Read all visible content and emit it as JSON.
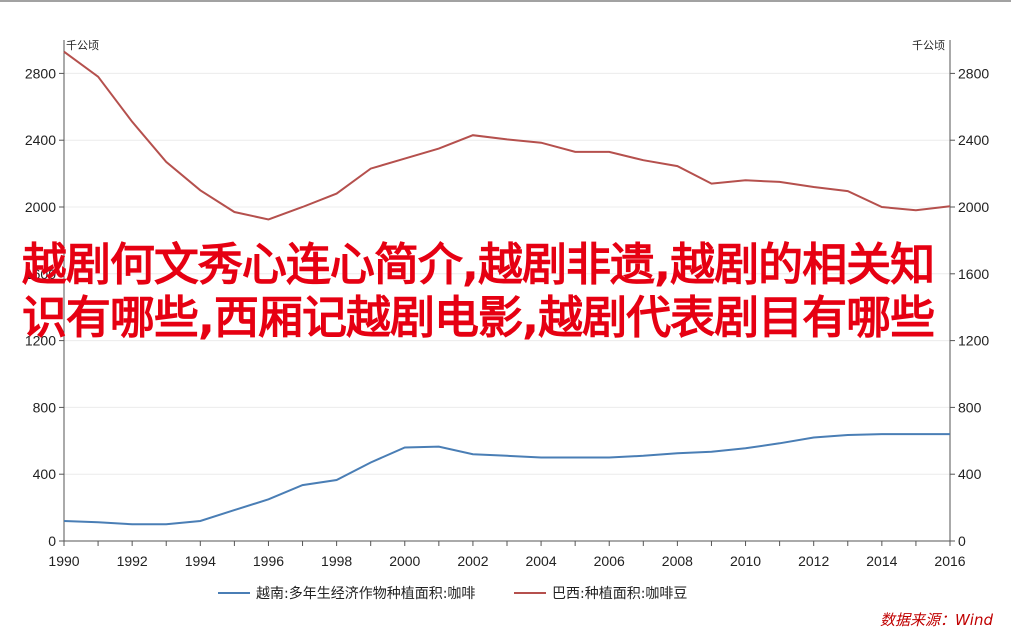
{
  "chart_data": {
    "type": "line",
    "left_unit": "千公顷",
    "right_unit": "千公顷",
    "x": [
      1990,
      1991,
      1992,
      1993,
      1994,
      1995,
      1996,
      1997,
      1998,
      1999,
      2000,
      2001,
      2002,
      2003,
      2004,
      2005,
      2006,
      2007,
      2008,
      2009,
      2010,
      2011,
      2012,
      2013,
      2014,
      2015,
      2016
    ],
    "xticks": [
      "1990",
      "1992",
      "1994",
      "1996",
      "1998",
      "2000",
      "2002",
      "2004",
      "2006",
      "2008",
      "2010",
      "2012",
      "2014",
      "2016"
    ],
    "yticks": [
      "0",
      "400",
      "800",
      "1200",
      "1600",
      "2000",
      "2400",
      "2800"
    ],
    "ylim": [
      0,
      3000
    ],
    "xlim": [
      1990,
      2016
    ],
    "grid": true,
    "legend_position": "bottom",
    "series": [
      {
        "name": "越南:多年生经济作物种植面积:咖啡",
        "color": "#4a7eb5",
        "values": [
          120,
          112,
          100,
          100,
          120,
          185,
          250,
          335,
          365,
          470,
          560,
          565,
          520,
          510,
          500,
          500,
          500,
          510,
          525,
          535,
          555,
          585,
          620,
          635,
          640,
          640,
          640
        ]
      },
      {
        "name": "巴西:种植面积:咖啡豆",
        "color": "#b5504d",
        "values": [
          2930,
          2780,
          2510,
          2270,
          2100,
          1970,
          1925,
          2000,
          2080,
          2230,
          2290,
          2350,
          2430,
          2405,
          2385,
          2330,
          2330,
          2280,
          2245,
          2140,
          2160,
          2150,
          2120,
          2095,
          2000,
          1980,
          2005
        ]
      }
    ]
  },
  "overlay_text": "越剧何文秀心连心简介,越剧非遗,越剧的相关知识有哪些,西厢记越剧电影,越剧代表剧目有哪些",
  "source": "数据来源：Wind",
  "colors": {
    "overlay": "#e60012",
    "source": "#c00000"
  }
}
